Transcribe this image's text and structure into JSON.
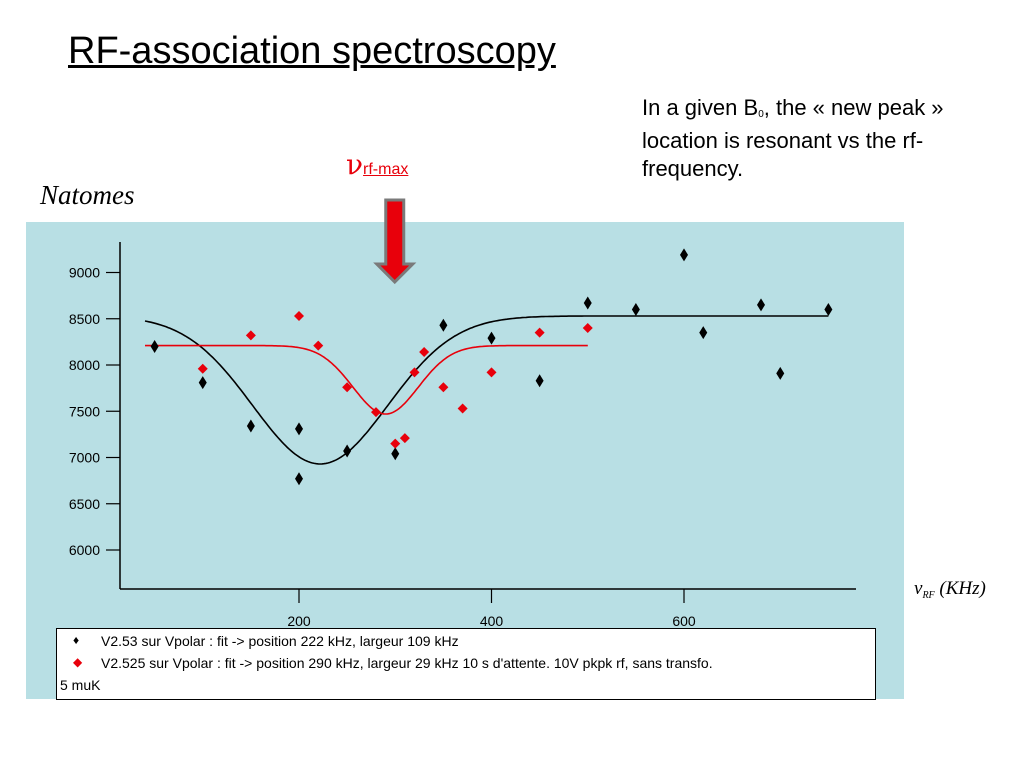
{
  "slide": {
    "title": "RF-association spectroscopy",
    "note_prefix": "In a given B",
    "note_sub": "0",
    "note_suffix": ", the « new peak » location is resonant vs the rf-frequency.",
    "arrow_symbol": "ν",
    "arrow_sub": "rf-max",
    "y_axis_label": "Natomes",
    "x_axis_symbol": "ν",
    "x_axis_sub": "RF",
    "x_axis_unit": "(KHz)"
  },
  "colors": {
    "plot_background": "#b8dfe4",
    "series_black": "#000000",
    "series_red": "#e8000b",
    "arrow_fill": "#e8000b",
    "arrow_border": "#7a7a7a"
  },
  "legend": {
    "entries": [
      {
        "marker": "♦",
        "color": "#000000",
        "text": "V2.53 sur Vpolar : fit -> position 222 kHz, largeur 109 kHz"
      },
      {
        "marker": "◆",
        "color": "#e8000b",
        "text": "V2.525 sur Vpolar : fit -> position 290 kHz, largeur 29 kHz 10 s d'attente. 10V pkpk rf, sans transfo."
      }
    ],
    "continuation": "5 muK"
  },
  "chart_data": {
    "type": "scatter",
    "title": "",
    "xlabel": "νRF (KHz)",
    "ylabel": "Natomes",
    "xlim": [
      15,
      780
    ],
    "ylim": [
      5550,
      9330
    ],
    "x_ticks": [
      200,
      400,
      600
    ],
    "y_ticks": [
      6000,
      6500,
      7000,
      7500,
      8000,
      8500,
      9000
    ],
    "arrow_at_x": 300,
    "series": [
      {
        "color": "#000000",
        "points": [
          [
            50,
            8200
          ],
          [
            100,
            7810
          ],
          [
            150,
            7340
          ],
          [
            200,
            7310
          ],
          [
            200,
            6770
          ],
          [
            250,
            7070
          ],
          [
            300,
            7040
          ],
          [
            350,
            8430
          ],
          [
            400,
            8290
          ],
          [
            450,
            7830
          ],
          [
            500,
            8670
          ],
          [
            550,
            8600
          ],
          [
            600,
            9190
          ],
          [
            620,
            8350
          ],
          [
            680,
            8650
          ],
          [
            700,
            7910
          ],
          [
            750,
            8600
          ]
        ],
        "fit": {
          "x_range": [
            40,
            750
          ],
          "baseline": 8530,
          "depth": 1600,
          "center": 222,
          "sigma": 70
        }
      },
      {
        "color": "#e8000b",
        "points": [
          [
            100,
            7960
          ],
          [
            150,
            8320
          ],
          [
            200,
            8530
          ],
          [
            220,
            8210
          ],
          [
            250,
            7760
          ],
          [
            280,
            7490
          ],
          [
            300,
            7150
          ],
          [
            310,
            7210
          ],
          [
            320,
            7920
          ],
          [
            330,
            8140
          ],
          [
            350,
            7760
          ],
          [
            370,
            7530
          ],
          [
            400,
            7920
          ],
          [
            450,
            8350
          ],
          [
            500,
            8400
          ]
        ],
        "fit": {
          "x_range": [
            40,
            500
          ],
          "baseline": 8210,
          "depth": 740,
          "center": 290,
          "sigma": 34
        }
      }
    ]
  }
}
